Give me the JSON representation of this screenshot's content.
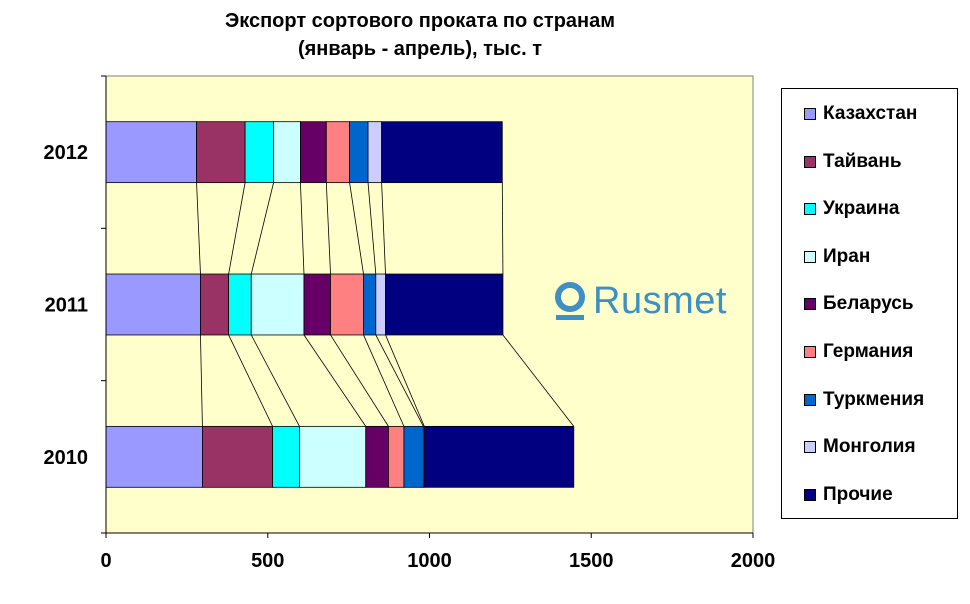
{
  "chart_data": {
    "type": "bar",
    "orientation": "horizontal",
    "stacked": true,
    "title": "Экспорт сортового проката по странам",
    "subtitle": "(январь - апрель), тыс. т",
    "xlabel": "",
    "ylabel": "",
    "xlim": [
      0,
      2000
    ],
    "x_ticks": [
      "0",
      "500",
      "1000",
      "1500",
      "2000"
    ],
    "categories": [
      "2012",
      "2011",
      "2010"
    ],
    "legend_position": "right",
    "grid": false,
    "plot_background": "#ffffcc",
    "series_connector_lines": true,
    "series": [
      {
        "name": "Казахстан",
        "color": "#9999ff",
        "values": [
          280,
          292,
          298
        ]
      },
      {
        "name": "Тайвань",
        "color": "#993366",
        "values": [
          150,
          87,
          217
        ]
      },
      {
        "name": "Украина",
        "color": "#00ffff",
        "values": [
          88,
          70,
          83
        ]
      },
      {
        "name": "Иран",
        "color": "#ccffff",
        "values": [
          83,
          163,
          205
        ]
      },
      {
        "name": "Беларусь",
        "color": "#660066",
        "values": [
          80,
          82,
          70
        ]
      },
      {
        "name": "Германия",
        "color": "#ff8080",
        "values": [
          72,
          102,
          48
        ]
      },
      {
        "name": "Туркмения",
        "color": "#0066cc",
        "values": [
          57,
          38,
          60
        ]
      },
      {
        "name": "Монголия",
        "color": "#ccccff",
        "values": [
          42,
          30,
          3
        ]
      },
      {
        "name": "Прочие",
        "color": "#000080",
        "values": [
          373,
          363,
          462
        ]
      }
    ]
  },
  "logo": {
    "text": "Rusmet",
    "icon": "rusmet-logo-icon",
    "color": "#3d8fc4"
  }
}
